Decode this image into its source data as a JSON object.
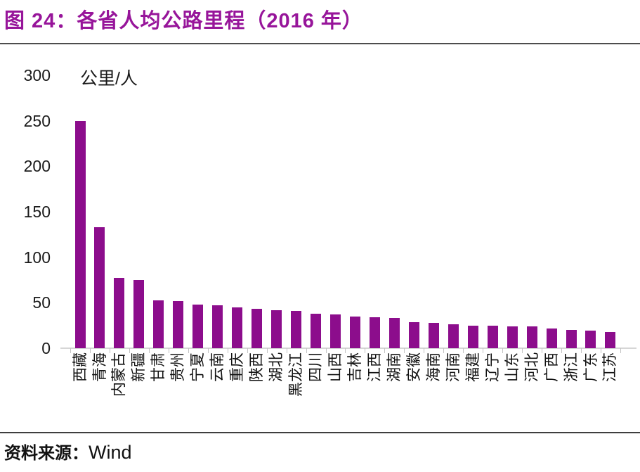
{
  "header": {
    "title": "图 24：各省人均公路里程（2016 年）"
  },
  "footer": {
    "source_label": "资料来源：",
    "source_value": "Wind"
  },
  "chart_data": {
    "type": "bar",
    "title": "图 24：各省人均公路里程（2016 年）",
    "unit_label": "公里/人",
    "categories": [
      "西藏",
      "青海",
      "内蒙古",
      "新疆",
      "甘肃",
      "贵州",
      "宁夏",
      "云南",
      "重庆",
      "陕西",
      "湖北",
      "黑龙江",
      "四川",
      "山西",
      "吉林",
      "江西",
      "湖南",
      "安徽",
      "海南",
      "河南",
      "福建",
      "辽宁",
      "山东",
      "河北",
      "广西",
      "浙江",
      "广东",
      "江苏"
    ],
    "values": [
      250,
      133,
      77,
      75,
      53,
      52,
      48,
      47,
      45,
      43,
      42,
      41,
      38,
      37,
      35,
      34,
      33,
      29,
      28,
      26,
      25,
      25,
      24,
      24,
      22,
      20,
      19,
      18
    ],
    "ylim": [
      0,
      300
    ],
    "yticks": [
      0,
      50,
      100,
      150,
      200,
      250,
      300
    ],
    "grid": false,
    "legend": false,
    "bar_color": "#8C0D8C",
    "title_color": "#97159A",
    "source": "Wind"
  }
}
